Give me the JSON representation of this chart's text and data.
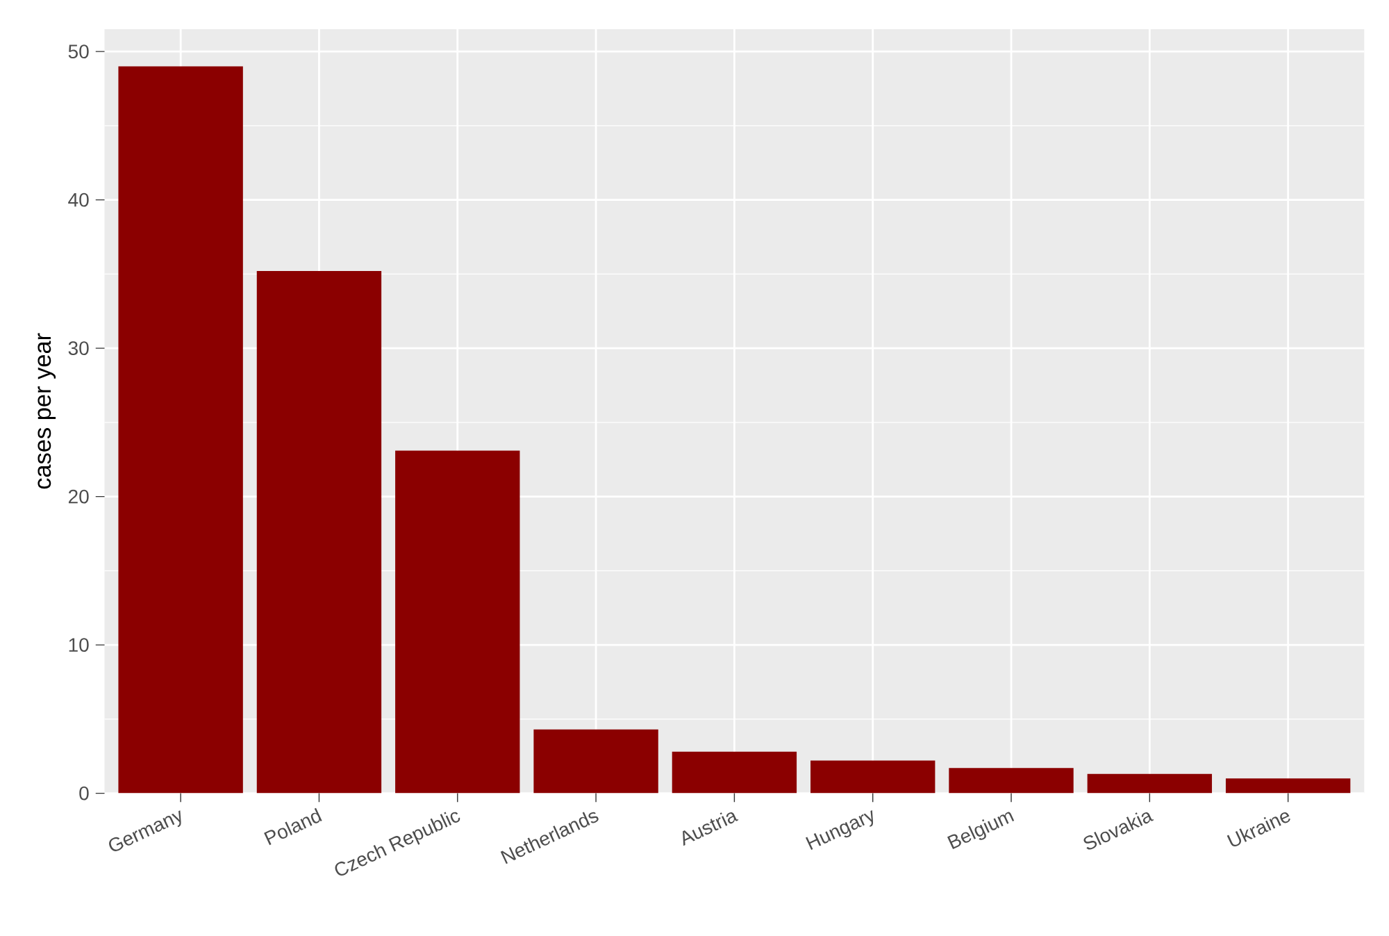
{
  "chart_data": {
    "type": "bar",
    "ylabel": "cases per year",
    "categories": [
      "Germany",
      "Poland",
      "Czech Republic",
      "Netherlands",
      "Austria",
      "Hungary",
      "Belgium",
      "Slovakia",
      "Ukraine"
    ],
    "values": [
      49.0,
      35.2,
      23.1,
      4.3,
      2.8,
      2.2,
      1.7,
      1.3,
      1.0
    ],
    "color": "#8b0000",
    "ylim": [
      0,
      51.5
    ],
    "yticks": [
      0,
      10,
      20,
      30,
      40,
      50
    ],
    "grid": true
  }
}
